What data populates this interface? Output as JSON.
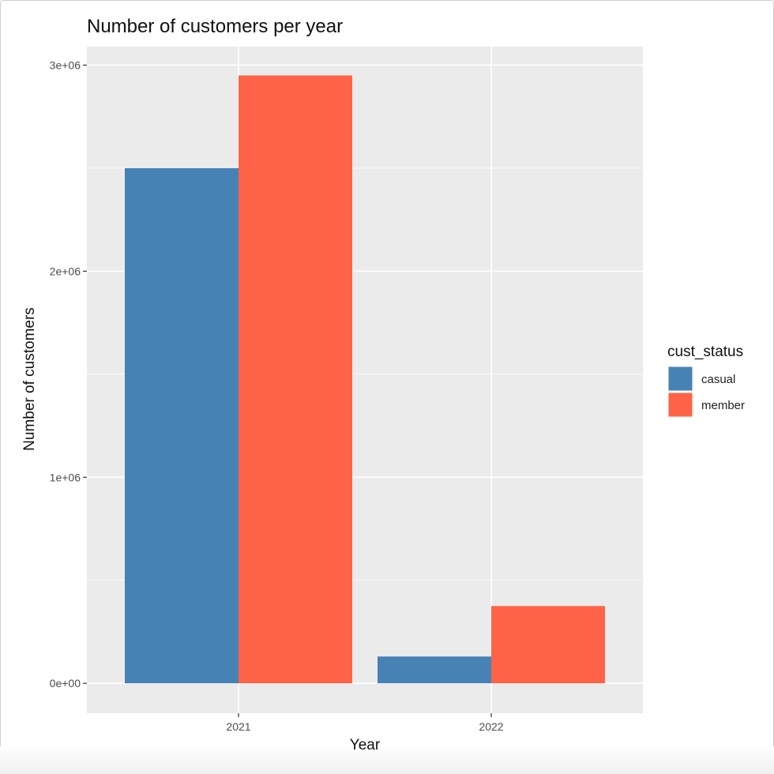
{
  "chart_data": {
    "type": "bar",
    "title": "Number of customers per year",
    "xlabel": "Year",
    "ylabel": "Number of customers",
    "categories": [
      "2021",
      "2022"
    ],
    "series": [
      {
        "name": "casual",
        "values": [
          2500000,
          130000
        ],
        "color": "#4682b4"
      },
      {
        "name": "member",
        "values": [
          2950000,
          375000
        ],
        "color": "#ff6347"
      }
    ],
    "ylim": [
      -145000,
      3090000
    ],
    "yticks": [
      0,
      1000000,
      2000000,
      3000000
    ],
    "ytick_labels": [
      "0e+00",
      "1e+06",
      "2e+06",
      "3e+06"
    ],
    "legend": {
      "title": "cust_status",
      "position": "right"
    },
    "grid": true,
    "panel_background": "#ebebeb",
    "grid_color": "#ffffff"
  }
}
